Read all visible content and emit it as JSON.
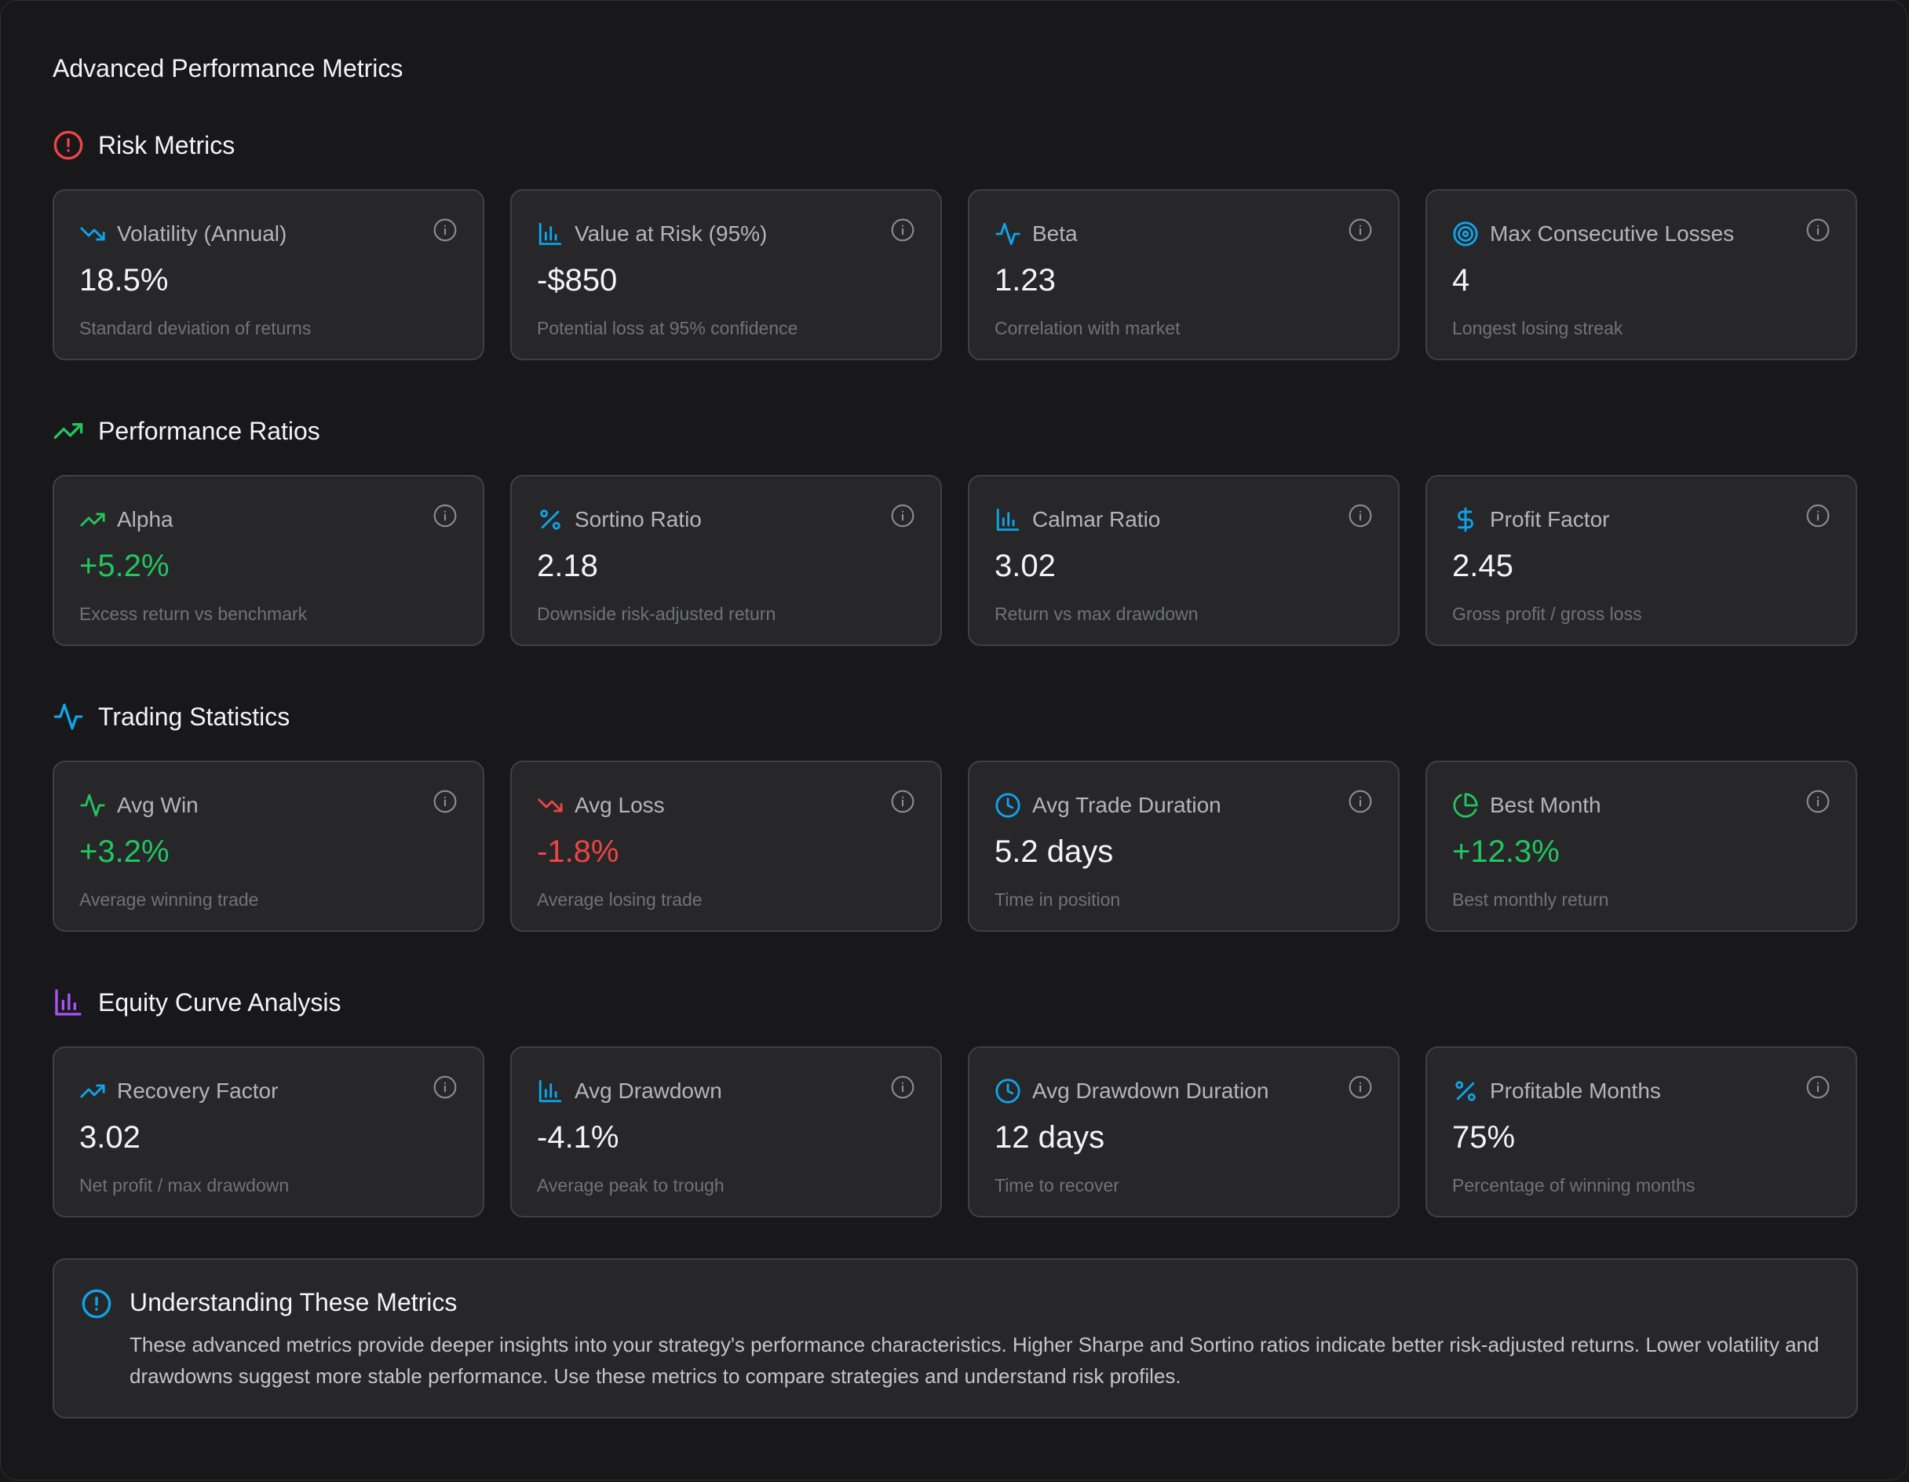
{
  "page": {
    "title": "Advanced Performance Metrics"
  },
  "colors": {
    "background": "#18181b",
    "card": "#27272a",
    "border": "#3f3f46",
    "positive": "#22c55e",
    "negative": "#ef4444",
    "accent": "#0ea5e9",
    "purple": "#a855f7"
  },
  "sections": [
    {
      "title": "Risk Metrics",
      "icon": "alert-circle-icon",
      "icon_color": "#ef4444",
      "cards": [
        {
          "label": "Volatility (Annual)",
          "value": "18.5%",
          "description": "Standard deviation of returns",
          "icon": "trending-down-icon",
          "icon_color": "#0ea5e9",
          "tone": "neutral"
        },
        {
          "label": "Value at Risk (95%)",
          "value": "-$850",
          "description": "Potential loss at 95% confidence",
          "icon": "bar-chart-icon",
          "icon_color": "#0ea5e9",
          "tone": "neutral"
        },
        {
          "label": "Beta",
          "value": "1.23",
          "description": "Correlation with market",
          "icon": "activity-icon",
          "icon_color": "#0ea5e9",
          "tone": "neutral"
        },
        {
          "label": "Max Consecutive Losses",
          "value": "4",
          "description": "Longest losing streak",
          "icon": "target-icon",
          "icon_color": "#0ea5e9",
          "tone": "neutral"
        }
      ]
    },
    {
      "title": "Performance Ratios",
      "icon": "trending-up-icon",
      "icon_color": "#22c55e",
      "cards": [
        {
          "label": "Alpha",
          "value": "+5.2%",
          "description": "Excess return vs benchmark",
          "icon": "trending-up-icon",
          "icon_color": "#22c55e",
          "tone": "positive"
        },
        {
          "label": "Sortino Ratio",
          "value": "2.18",
          "description": "Downside risk-adjusted return",
          "icon": "percent-icon",
          "icon_color": "#0ea5e9",
          "tone": "neutral"
        },
        {
          "label": "Calmar Ratio",
          "value": "3.02",
          "description": "Return vs max drawdown",
          "icon": "bar-chart-icon",
          "icon_color": "#0ea5e9",
          "tone": "neutral"
        },
        {
          "label": "Profit Factor",
          "value": "2.45",
          "description": "Gross profit / gross loss",
          "icon": "dollar-icon",
          "icon_color": "#0ea5e9",
          "tone": "neutral"
        }
      ]
    },
    {
      "title": "Trading Statistics",
      "icon": "activity-icon",
      "icon_color": "#0ea5e9",
      "cards": [
        {
          "label": "Avg Win",
          "value": "+3.2%",
          "description": "Average winning trade",
          "icon": "activity-icon",
          "icon_color": "#22c55e",
          "tone": "positive"
        },
        {
          "label": "Avg Loss",
          "value": "-1.8%",
          "description": "Average losing trade",
          "icon": "trending-down-icon",
          "icon_color": "#ef4444",
          "tone": "negative"
        },
        {
          "label": "Avg Trade Duration",
          "value": "5.2 days",
          "description": "Time in position",
          "icon": "clock-icon",
          "icon_color": "#0ea5e9",
          "tone": "neutral"
        },
        {
          "label": "Best Month",
          "value": "+12.3%",
          "description": "Best monthly return",
          "icon": "pie-chart-icon",
          "icon_color": "#22c55e",
          "tone": "positive"
        }
      ]
    },
    {
      "title": "Equity Curve Analysis",
      "icon": "bar-chart-icon",
      "icon_color": "#a855f7",
      "cards": [
        {
          "label": "Recovery Factor",
          "value": "3.02",
          "description": "Net profit / max drawdown",
          "icon": "trending-up-icon",
          "icon_color": "#0ea5e9",
          "tone": "neutral"
        },
        {
          "label": "Avg Drawdown",
          "value": "-4.1%",
          "description": "Average peak to trough",
          "icon": "bar-chart-icon",
          "icon_color": "#0ea5e9",
          "tone": "neutral"
        },
        {
          "label": "Avg Drawdown Duration",
          "value": "12 days",
          "description": "Time to recover",
          "icon": "clock-icon",
          "icon_color": "#0ea5e9",
          "tone": "neutral"
        },
        {
          "label": "Profitable Months",
          "value": "75%",
          "description": "Percentage of winning months",
          "icon": "percent-icon",
          "icon_color": "#0ea5e9",
          "tone": "neutral"
        }
      ]
    }
  ],
  "note": {
    "title": "Understanding These Metrics",
    "icon": "alert-circle-icon",
    "icon_color": "#0ea5e9",
    "text": "These advanced metrics provide deeper insights into your strategy's performance characteristics. Higher Sharpe and Sortino ratios indicate better risk-adjusted returns. Lower volatility and drawdowns suggest more stable performance. Use these metrics to compare strategies and understand risk profiles."
  }
}
